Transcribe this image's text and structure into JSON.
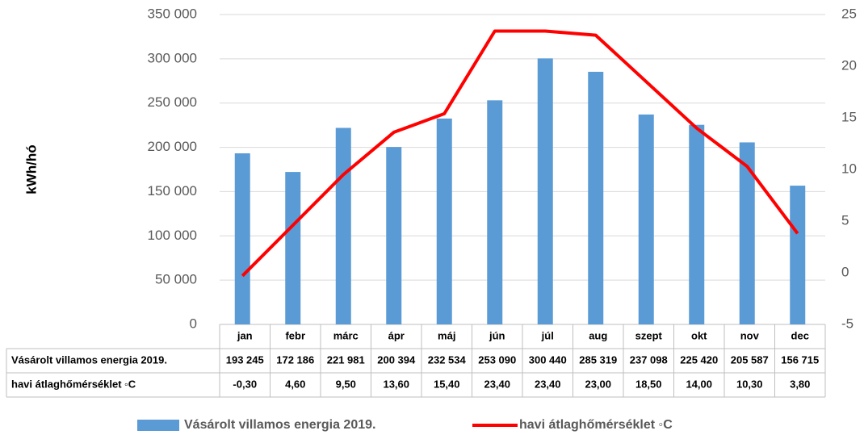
{
  "chart_data": {
    "type": "bar",
    "y_label": "kWh/hó",
    "categories": [
      "jan",
      "febr",
      "márc",
      "ápr",
      "máj",
      "jún",
      "júl",
      "aug",
      "szept",
      "okt",
      "nov",
      "dec"
    ],
    "series": [
      {
        "name": "Vásárolt villamos energia 2019.",
        "type": "bar",
        "color": "#5b9bd5",
        "values": [
          193245,
          172186,
          221981,
          200394,
          232534,
          253090,
          300440,
          285319,
          237098,
          225420,
          205587,
          156715
        ],
        "value_labels": [
          "193 245",
          "172 186",
          "221 981",
          "200 394",
          "232 534",
          "253 090",
          "300 440",
          "285 319",
          "237 098",
          "225 420",
          "205 587",
          "156 715"
        ]
      },
      {
        "name": "havi átlaghőmérséklet ◦C",
        "type": "line",
        "axis": "y2",
        "color": "#ff0000",
        "values": [
          -0.3,
          4.6,
          9.5,
          13.6,
          15.4,
          23.4,
          23.4,
          23.0,
          18.5,
          14.0,
          10.3,
          3.8
        ],
        "value_labels": [
          "-0,30",
          "4,60",
          "9,50",
          "13,60",
          "15,40",
          "23,40",
          "23,40",
          "23,00",
          "18,50",
          "14,00",
          "10,30",
          "3,80"
        ]
      }
    ],
    "ylim": [
      0,
      350000
    ],
    "yticks": [
      0,
      {
        "value": 50000,
        "label": "50 000"
      },
      {
        "value": 100000,
        "label": "100 000"
      },
      {
        "value": 150000,
        "label": "150 000"
      },
      {
        "value": 200000,
        "label": "200 000"
      },
      {
        "value": 250000,
        "label": "250 000"
      },
      {
        "value": 300000,
        "label": "300 000"
      },
      {
        "value": 350000,
        "label": "350 000"
      }
    ],
    "y2lim": [
      -5,
      25
    ],
    "y2ticks": [
      -5,
      0,
      5,
      10,
      15,
      20,
      25
    ],
    "grid": true,
    "legend": "bottom",
    "data_table": true
  }
}
